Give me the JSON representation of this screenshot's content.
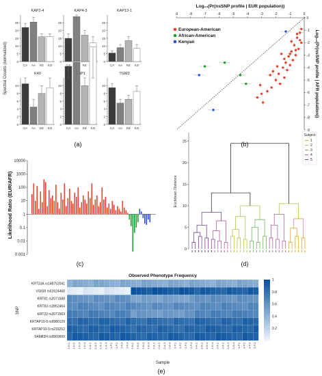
{
  "panel_labels": {
    "a": "(a)",
    "b": "(b)",
    "c": "(c)",
    "d": "(d)",
    "e": "(e)"
  },
  "colors": {
    "CA": "#3c3c3c",
    "AA": "#808080",
    "KE": "#b4b4b4",
    "KO": "#ffffff",
    "european": "#e8412c",
    "african": "#1f9e2a",
    "kenyan": "#2a4fd8",
    "subject1": "#e0a030",
    "subject2": "#a8c840",
    "subject3": "#70b060",
    "subject4": "#b060a0",
    "subject5": "#7a3fa0",
    "heat_low": "#eaf2fb",
    "heat_high": "#08519c"
  },
  "chart_data": [
    {
      "id": "a",
      "type": "bar",
      "ylabel": "Spectral Counts (normalized)",
      "categories": [
        "CA",
        "AA",
        "KE",
        "KO"
      ],
      "ylim_top": [
        0,
        30
      ],
      "ylim_bottom": [
        0,
        12
      ],
      "yticks_top": [
        0,
        5,
        10,
        15,
        20,
        25
      ],
      "yticks_bottom": [
        0,
        2,
        4,
        6,
        8,
        10
      ],
      "panels": [
        {
          "title": "KAP2-4",
          "values": [
            22,
            25.5,
            16,
            16
          ],
          "errors": [
            2.5,
            3,
            2,
            2
          ]
        },
        {
          "title": "KAP4-3",
          "values": [
            15,
            29,
            17,
            12
          ],
          "errors": [
            3,
            5,
            3,
            4
          ]
        },
        {
          "title": "KAP13-1",
          "values": [
            5.5,
            9,
            13.5,
            8.5
          ],
          "errors": [
            1.5,
            2,
            2.5,
            2.5
          ]
        },
        {
          "title": "K40",
          "values": [
            10.5,
            4.5,
            8,
            9.5
          ],
          "errors": [
            2,
            2,
            2,
            2.5
          ]
        },
        {
          "title": "SBP1",
          "values": [
            15,
            16,
            10,
            20
          ],
          "errors": [
            3,
            4,
            2,
            5
          ]
        },
        {
          "title": "TGM3",
          "values": [
            9.5,
            5.5,
            6.5,
            8.5
          ],
          "errors": [
            1,
            1,
            1,
            1.5
          ]
        }
      ]
    },
    {
      "id": "b",
      "type": "scatter",
      "xlabel": "Log₁₀(Pr(nsSNP profile | EUR population))",
      "ylabel": "Log₁₀(Pr(nsSNP profile | AFR population))",
      "xlim": [
        -9,
        0
      ],
      "ylim": [
        -9,
        0
      ],
      "xticks": [
        -9,
        -8,
        -7,
        -6,
        -5,
        -4,
        -3,
        -2,
        -1,
        0
      ],
      "yticks": [
        -9,
        -8,
        -7,
        -6,
        -5,
        -4,
        -3,
        -2,
        -1,
        0
      ],
      "legend": [
        "European-American",
        "African-American",
        "Kenyan"
      ],
      "legend_position": "top-left",
      "series": [
        {
          "name": "European-American",
          "points": [
            [
              -0.3,
              -1.2
            ],
            [
              -0.5,
              -1.6
            ],
            [
              -0.2,
              -2.0
            ],
            [
              -0.7,
              -2.2
            ],
            [
              -0.4,
              -2.5
            ],
            [
              -0.9,
              -2.7
            ],
            [
              -0.6,
              -3.0
            ],
            [
              -1.1,
              -3.1
            ],
            [
              -0.8,
              -3.4
            ],
            [
              -1.3,
              -3.6
            ],
            [
              -1.0,
              -3.8
            ],
            [
              -1.5,
              -4.0
            ],
            [
              -1.2,
              -4.2
            ],
            [
              -1.8,
              -4.5
            ],
            [
              -1.4,
              -4.8
            ],
            [
              -2.0,
              -5.0
            ],
            [
              -1.7,
              -5.3
            ],
            [
              -2.3,
              -5.6
            ],
            [
              -2.6,
              -5.9
            ],
            [
              -3.0,
              -6.1
            ],
            [
              -3.3,
              -6.4
            ],
            [
              -2.9,
              -6.8
            ],
            [
              -0.3,
              -1.8
            ],
            [
              -0.6,
              -2.6
            ],
            [
              -1.0,
              -2.9
            ],
            [
              -1.4,
              -3.3
            ],
            [
              -1.9,
              -3.9
            ],
            [
              -2.2,
              -4.3
            ],
            [
              -0.2,
              -0.9
            ],
            [
              -0.5,
              -1.3
            ],
            [
              -0.9,
              -1.9
            ],
            [
              -1.6,
              -2.9
            ],
            [
              -2.4,
              -4.6
            ],
            [
              -3.1,
              -5.4
            ]
          ]
        },
        {
          "name": "African-American",
          "points": [
            [
              -5.6,
              -3.6
            ],
            [
              -7.0,
              -3.9
            ],
            [
              -4.5,
              -4.6
            ],
            [
              -4.1,
              -5.3
            ]
          ]
        },
        {
          "name": "Kenyan",
          "points": [
            [
              -1.3,
              -1.1
            ],
            [
              -7.4,
              -4.6
            ],
            [
              -6.4,
              -7.4
            ]
          ]
        }
      ]
    },
    {
      "id": "c",
      "type": "bar",
      "ylabel": "Likelihood Ratio (EUR/AFR)",
      "yscale": "log",
      "yticks": [
        "0.001",
        "0.01",
        "0.1",
        "1",
        "10",
        "100",
        "1000",
        "10000"
      ],
      "series": [
        {
          "name": "European-American",
          "log10_values": [
            1.5,
            2.3,
            1.0,
            2.1,
            0.4,
            1.7,
            0.9,
            2.6,
            2.4,
            0.6,
            1.8,
            1.2,
            1.4,
            1.0,
            2.2,
            0.9,
            0.4,
            1.6,
            1.1,
            2.3,
            0.6,
            1.2,
            1.9,
            1.0,
            0.8,
            1.6,
            1.3,
            2.0,
            0.5,
            0.9,
            1.4,
            1.1,
            0.8,
            1.7,
            1.2,
            2.3,
            0.7,
            1.1,
            1.4,
            0.6,
            0.9,
            2.0,
            1.1,
            1.3,
            0.5,
            0.8,
            0.4,
            1.0,
            0.7,
            0.3,
            0.6,
            0.4,
            0.2,
            1.0,
            0.5,
            0.3,
            0.1
          ]
        },
        {
          "name": "African-American",
          "log10_values": [
            -0.4,
            -0.9,
            -2.8,
            -1.4,
            -1.0,
            -0.6
          ]
        },
        {
          "name": "Kenyan",
          "log10_values": [
            0.4,
            0.2,
            -0.3,
            -0.7,
            -0.8,
            -0.4,
            -0.6
          ]
        }
      ]
    },
    {
      "id": "d",
      "type": "dendrogram",
      "ylabel": "Euclidean Distance",
      "ylim": [
        0,
        27
      ],
      "yticks": [
        0,
        5,
        10,
        15,
        20,
        25
      ],
      "legend_title": "Subject",
      "legend": [
        "1",
        "2",
        "3",
        "4",
        "5"
      ],
      "legend_position": "top-right"
    },
    {
      "id": "e",
      "type": "heatmap",
      "title": "Observed Phenotype Frequency",
      "xlabel": "Sample",
      "ylabel": "SNP",
      "rows": [
        "KRT33A rs148752041",
        "VSIG8 rs62624468",
        "KRT81 rs2071588",
        "KRT83 rs2852464",
        "KRT32 rs2071563",
        "KRTAP10-9 rs9980129",
        "KRTAP10-3 rs233252",
        "FAM83H rs9969600"
      ],
      "columns": [
        "1-H.1",
        "1-H.2",
        "1-H.3",
        "1-H.4",
        "1-A.1",
        "1-A.2",
        "1-A.3",
        "1-A.4",
        "1-P.1",
        "1-P.2",
        "1-P.3",
        "1-P.4",
        "2-H.1",
        "2-H.2",
        "2-H.3",
        "2-H.4",
        "2-A.1",
        "2-A.2",
        "2-A.3",
        "2-A.4",
        "2-P.1",
        "2-P.2",
        "2-P.3",
        "2-P.4",
        "3-H.1",
        "3-H.2",
        "3-H.3",
        "3-H.4",
        "3-A.1",
        "3-A.2",
        "3-A.3",
        "3-A.4",
        "3-P.1",
        "3-P.2",
        "3-P.3",
        "3-P.4"
      ],
      "colorbar_ticks": [
        "1",
        "0.8",
        "0.6",
        "0.4",
        "0.2"
      ],
      "row_values_group1": [
        0.45,
        0.05,
        0.6,
        0.65,
        0.7,
        0.85,
        0.88,
        0.9
      ],
      "row_values_group2": [
        0.45,
        0.95,
        0.5,
        0.62,
        0.55,
        0.82,
        0.85,
        0.88
      ],
      "row_values_group3": [
        0.45,
        0.9,
        0.6,
        0.65,
        0.7,
        0.85,
        0.88,
        0.9
      ]
    }
  ]
}
